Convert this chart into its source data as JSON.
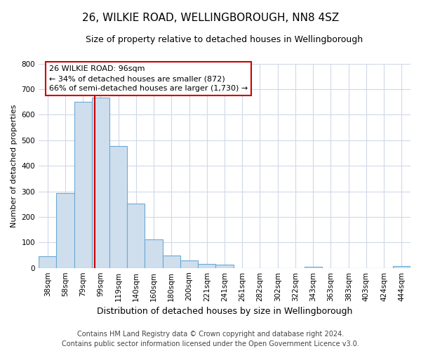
{
  "title": "26, WILKIE ROAD, WELLINGBOROUGH, NN8 4SZ",
  "subtitle": "Size of property relative to detached houses in Wellingborough",
  "xlabel": "Distribution of detached houses by size in Wellingborough",
  "ylabel": "Number of detached properties",
  "bar_labels": [
    "38sqm",
    "58sqm",
    "79sqm",
    "99sqm",
    "119sqm",
    "140sqm",
    "160sqm",
    "180sqm",
    "200sqm",
    "221sqm",
    "241sqm",
    "261sqm",
    "282sqm",
    "302sqm",
    "322sqm",
    "343sqm",
    "363sqm",
    "383sqm",
    "403sqm",
    "424sqm",
    "444sqm"
  ],
  "bar_heights": [
    47,
    293,
    651,
    667,
    478,
    252,
    113,
    48,
    28,
    15,
    13,
    0,
    0,
    0,
    0,
    5,
    0,
    0,
    0,
    0,
    7
  ],
  "bar_color": "#cfdeed",
  "bar_edge_color": "#6aaad4",
  "annotation_line1": "26 WILKIE ROAD: 96sqm",
  "annotation_line2": "← 34% of detached houses are smaller (872)",
  "annotation_line3": "66% of semi-detached houses are larger (1,730) →",
  "annotation_box_color": "#ffffff",
  "annotation_box_edge": "#cc0000",
  "vline_color": "#cc0000",
  "vline_x": 2.65,
  "ylim": [
    0,
    800
  ],
  "yticks": [
    0,
    100,
    200,
    300,
    400,
    500,
    600,
    700,
    800
  ],
  "footer_line1": "Contains HM Land Registry data © Crown copyright and database right 2024.",
  "footer_line2": "Contains public sector information licensed under the Open Government Licence v3.0.",
  "bg_color": "#ffffff",
  "grid_color": "#d0d8e8",
  "title_fontsize": 11,
  "subtitle_fontsize": 9,
  "xlabel_fontsize": 9,
  "ylabel_fontsize": 8,
  "tick_fontsize": 7.5,
  "footer_fontsize": 7,
  "ann_fontsize": 8
}
